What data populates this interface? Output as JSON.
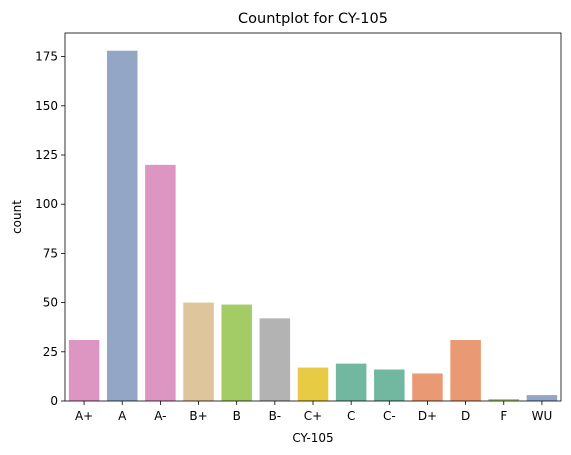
{
  "chart_data": {
    "type": "bar",
    "title": "Countplot for CY-105",
    "xlabel": "CY-105",
    "ylabel": "count",
    "categories": [
      "A+",
      "A",
      "A-",
      "B+",
      "B",
      "B-",
      "C+",
      "C",
      "C-",
      "D+",
      "D",
      "F",
      "WU"
    ],
    "values": [
      31,
      178,
      120,
      50,
      49,
      42,
      17,
      19,
      16,
      14,
      31,
      1,
      3
    ],
    "colors": [
      "#dd96c2",
      "#93a6c6",
      "#dd96c2",
      "#dfc59c",
      "#a4cc66",
      "#b3b3b3",
      "#e7cb44",
      "#72b8a1",
      "#72b8a1",
      "#ea9975",
      "#ea9975",
      "#a4cc66",
      "#93a6c6"
    ],
    "ylim": [
      0,
      187
    ],
    "yticks": [
      0,
      25,
      50,
      75,
      100,
      125,
      150,
      175
    ],
    "grid": false,
    "legend": false
  }
}
